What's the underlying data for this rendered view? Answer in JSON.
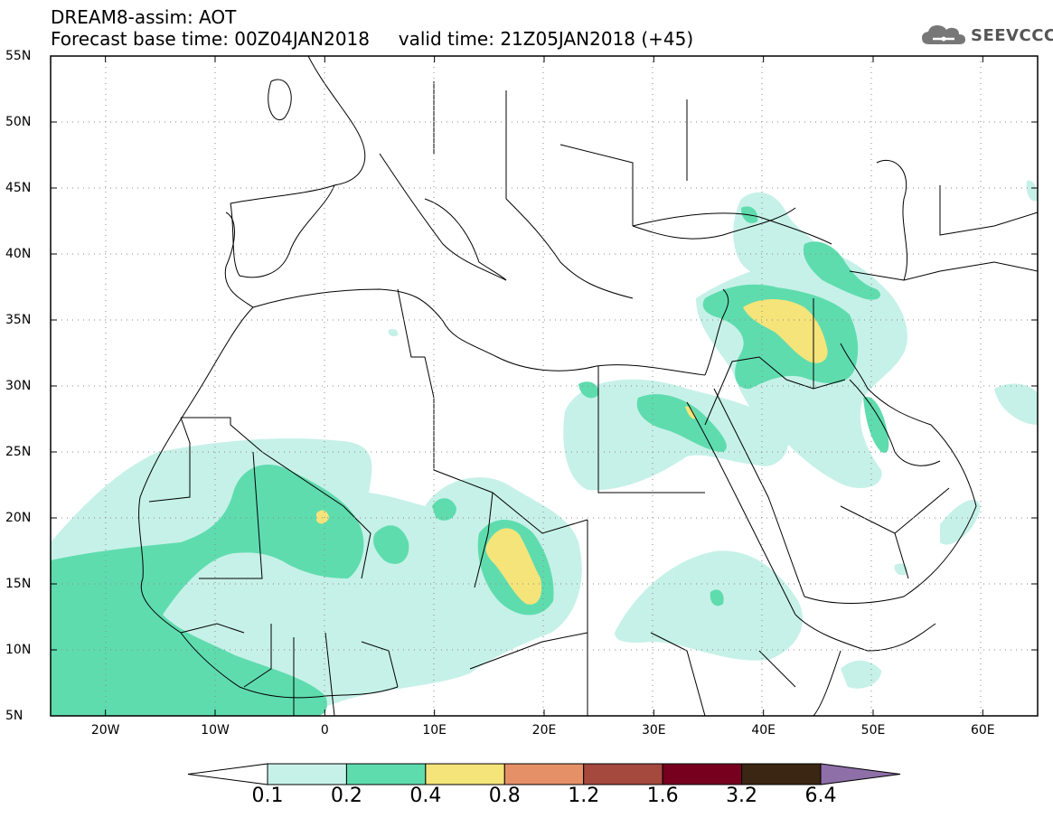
{
  "header": {
    "line1": "DREAM8-assim: AOT",
    "line2": "Forecast base time: 00Z04JAN2018     valid time: 21Z05JAN2018 (+45)",
    "logo_text": "SEEVCCC",
    "logo_icon": "cloud-icon"
  },
  "map": {
    "lat_labels": [
      "55N",
      "50N",
      "45N",
      "40N",
      "35N",
      "30N",
      "25N",
      "20N",
      "15N",
      "10N",
      "5N"
    ],
    "lon_labels": [
      "20W",
      "10W",
      "0",
      "10E",
      "20E",
      "30E",
      "40E",
      "50E",
      "60E"
    ],
    "lon_range": [
      -25,
      65
    ],
    "lat_range": [
      5,
      55
    ]
  },
  "legend": {
    "labels": [
      "0.1",
      "0.2",
      "0.4",
      "0.8",
      "1.2",
      "1.6",
      "3.2",
      "6.4"
    ],
    "colors": [
      "#ffffff",
      "#c6f1e8",
      "#5fdcae",
      "#f5e47a",
      "#e69068",
      "#a5483d",
      "#77001f",
      "#3a2613",
      "#8e6fa8"
    ]
  }
}
